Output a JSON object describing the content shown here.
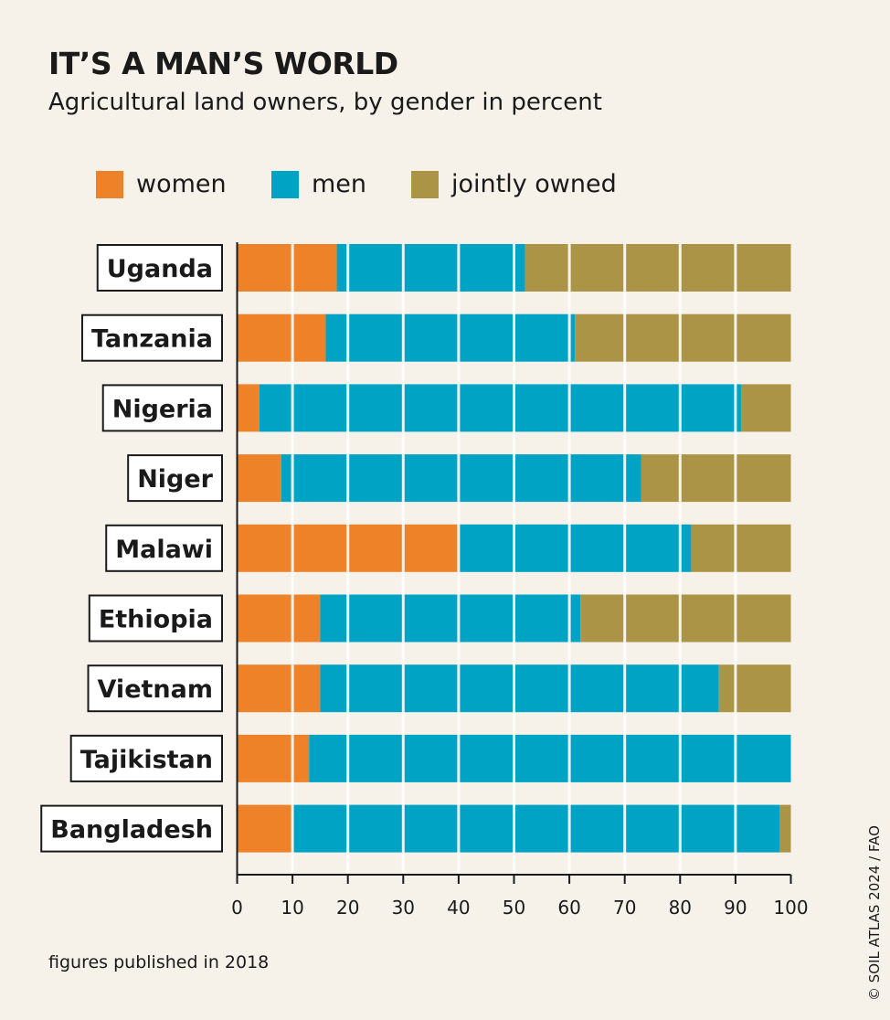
{
  "chart_data": {
    "type": "bar",
    "orientation": "horizontal",
    "stacked": true,
    "title": "IT’S A MAN’S WORLD",
    "subtitle": "Agricultural land owners, by gender in percent",
    "categories": [
      "Uganda",
      "Tanzania",
      "Nigeria",
      "Niger",
      "Malawi",
      "Ethiopia",
      "Vietnam",
      "Tajikistan",
      "Bangladesh"
    ],
    "series": [
      {
        "name": "women",
        "color": "#ee8229",
        "values": [
          18,
          16,
          4,
          8,
          40,
          15,
          15,
          13,
          10
        ]
      },
      {
        "name": "men",
        "color": "#00a3c4",
        "values": [
          34,
          45,
          87,
          65,
          42,
          47,
          72,
          87,
          88
        ]
      },
      {
        "name": "jointly owned",
        "color": "#ab9445",
        "values": [
          48,
          39,
          9,
          27,
          18,
          38,
          13,
          0,
          2
        ]
      }
    ],
    "xlim": [
      0,
      100
    ],
    "xticks": [
      "0",
      "10",
      "20",
      "30",
      "40",
      "50",
      "60",
      "70",
      "80",
      "90",
      "100"
    ],
    "grid": true,
    "legend": "top",
    "footnote": "figures published in 2018",
    "credit": "© SOIL ATLAS 2024 / FAO"
  }
}
